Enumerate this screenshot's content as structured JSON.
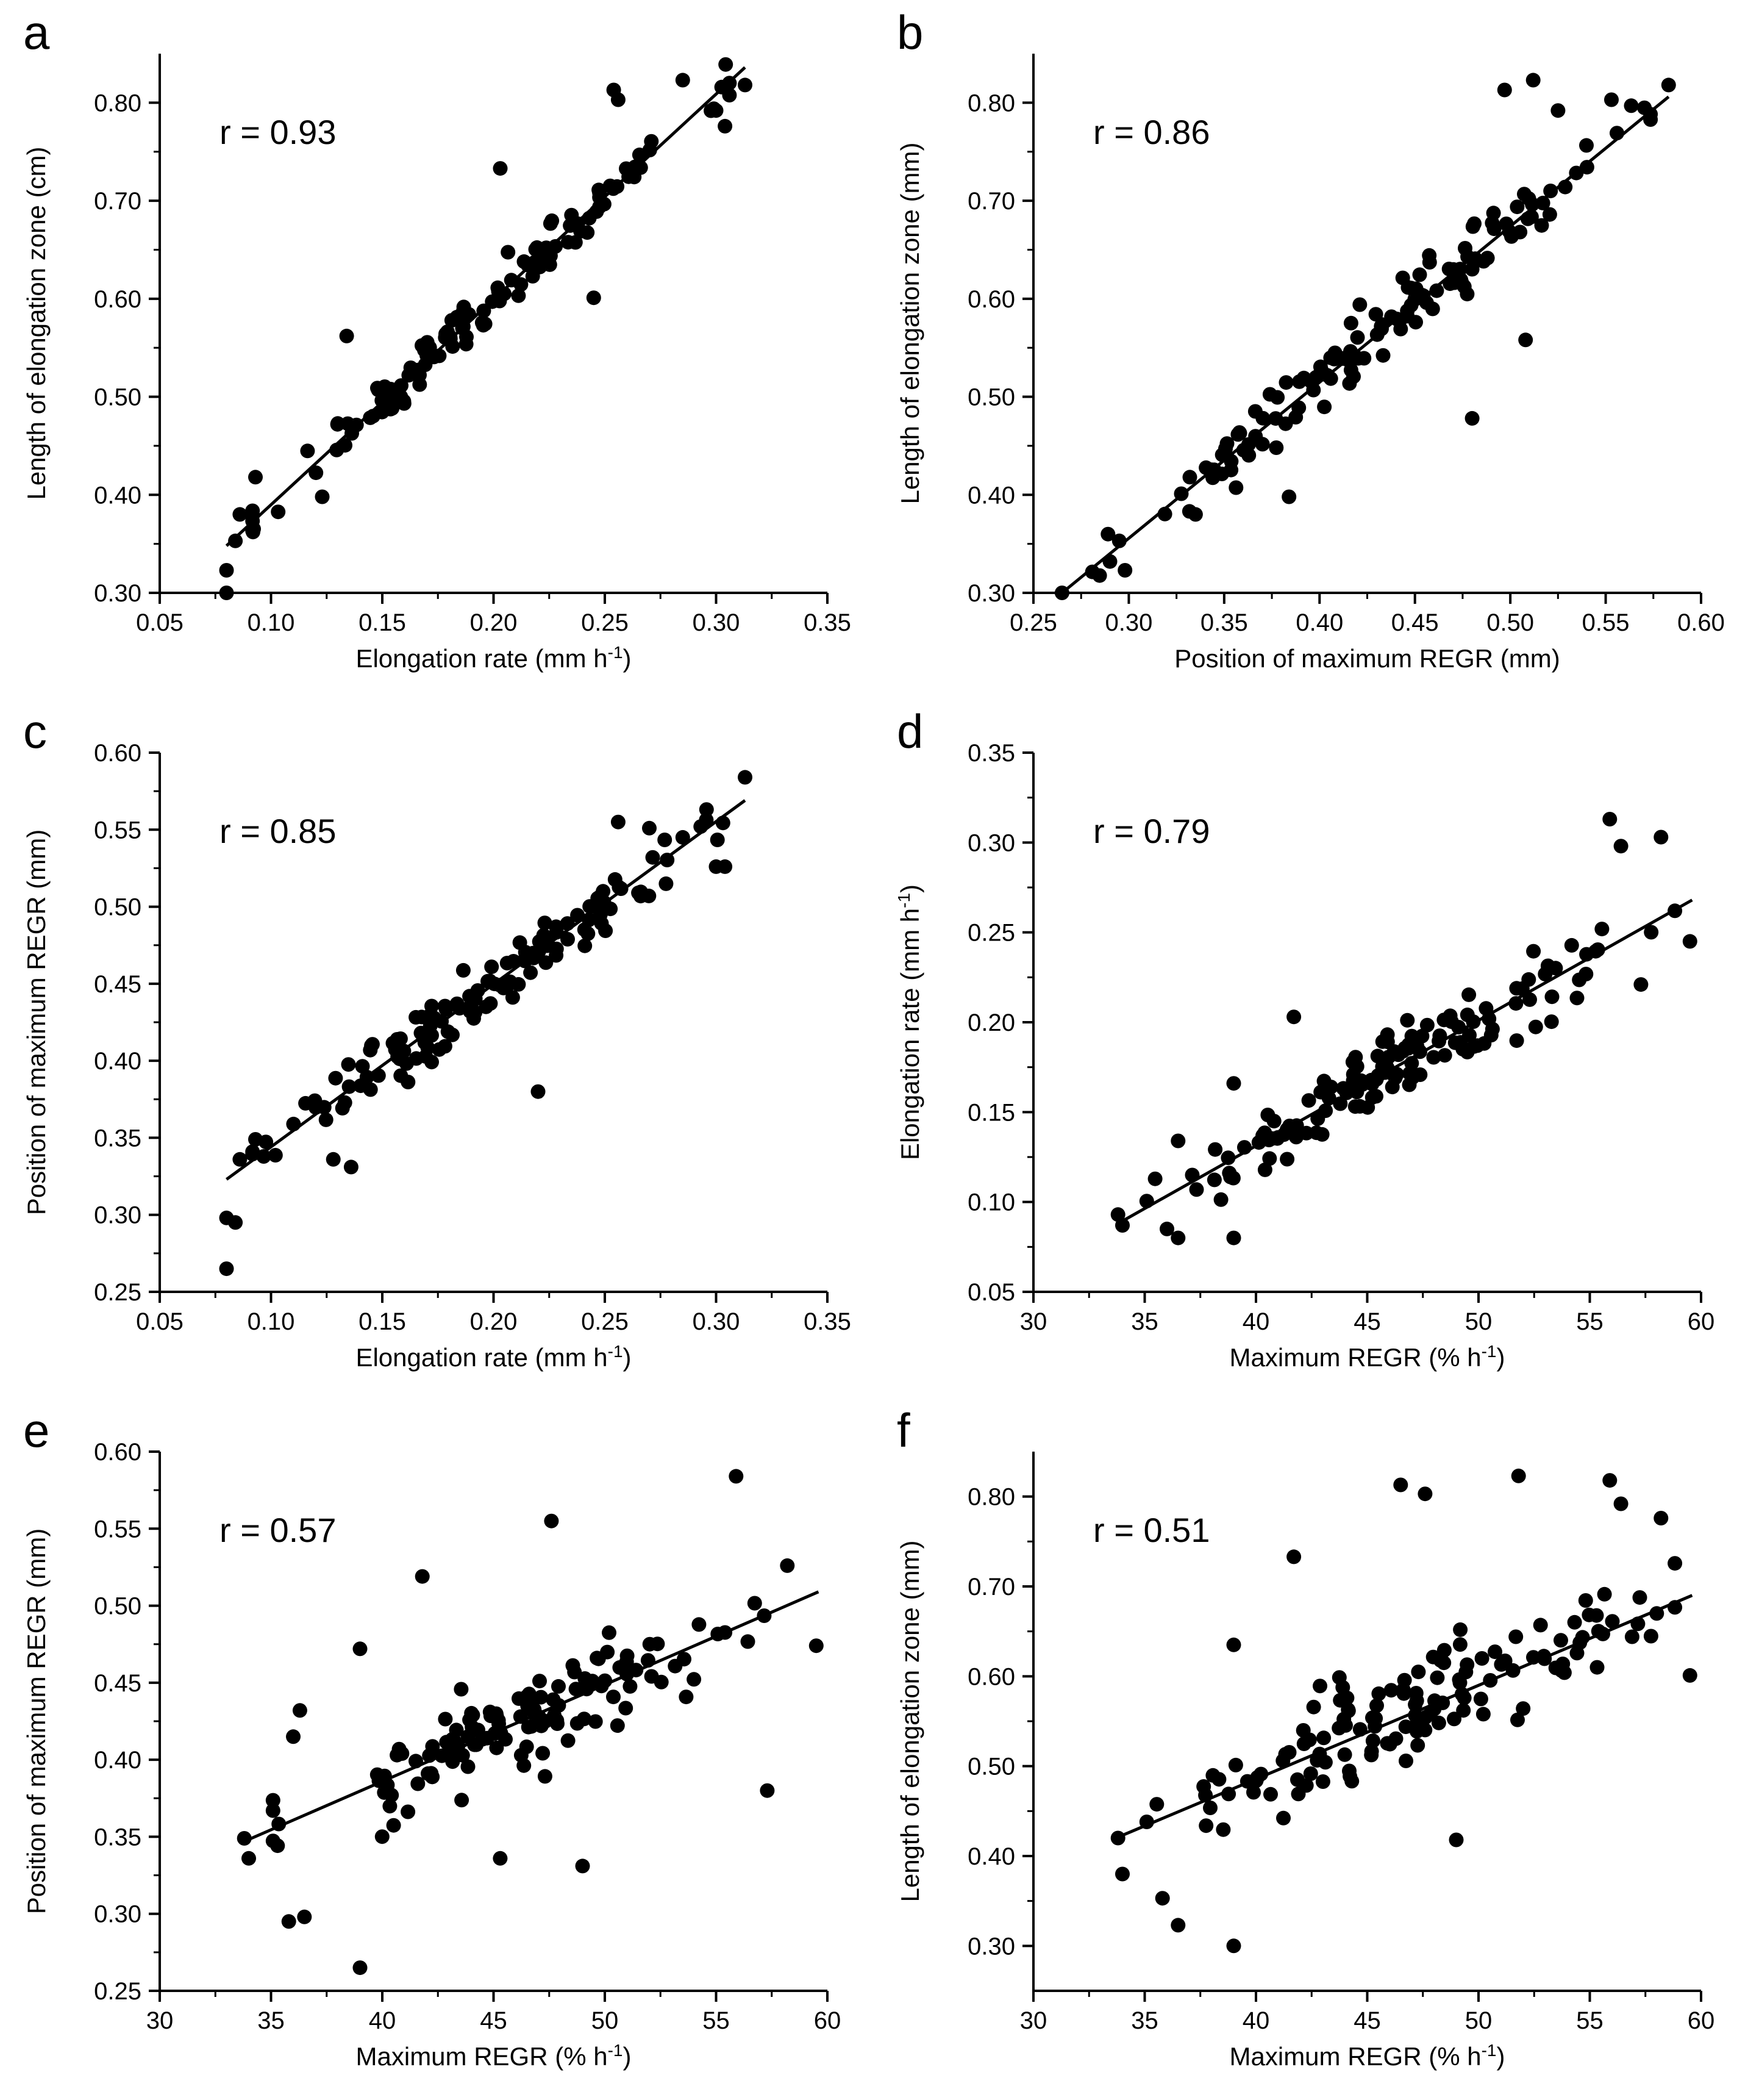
{
  "figure": {
    "panels_order": [
      "a",
      "b",
      "c",
      "d",
      "e",
      "f"
    ]
  },
  "chart_data": [
    {
      "panel": "a",
      "type": "scatter",
      "title": "",
      "r_text": "r = 0.93",
      "xlabel": "Elongation rate (mm h",
      "xlabel_sup": "-1",
      "xlabel_end": ")",
      "ylabel": "Length of elongation zone (cm)",
      "xlim": [
        0.05,
        0.35
      ],
      "ylim": [
        0.3,
        0.85
      ],
      "xticks": [
        "0.05",
        "0.10",
        "0.15",
        "0.20",
        "0.25",
        "0.30",
        "0.35"
      ],
      "yticks": [
        "0.30",
        "0.40",
        "0.50",
        "0.60",
        "0.70",
        "0.80"
      ],
      "regression": {
        "x": [
          0.08,
          0.313
        ],
        "y": [
          0.348,
          0.836
        ]
      },
      "seed": 11,
      "anchors": [
        [
          0.08,
          0.3
        ],
        [
          0.08,
          0.323
        ],
        [
          0.084,
          0.353
        ],
        [
          0.086,
          0.38
        ],
        [
          0.093,
          0.418
        ],
        [
          0.134,
          0.562
        ],
        [
          0.203,
          0.733
        ],
        [
          0.254,
          0.813
        ],
        [
          0.256,
          0.803
        ],
        [
          0.285,
          0.823
        ],
        [
          0.313,
          0.818
        ],
        [
          0.3,
          0.792
        ],
        [
          0.304,
          0.776
        ],
        [
          0.245,
          0.601
        ],
        [
          0.123,
          0.398
        ]
      ]
    },
    {
      "panel": "b",
      "type": "scatter",
      "title": "",
      "r_text": "r = 0.86",
      "xlabel": "Position of maximum REGR (mm)",
      "ylabel": "Length of elongation zone (mm)",
      "xlim": [
        0.25,
        0.6
      ],
      "ylim": [
        0.3,
        0.85
      ],
      "xticks": [
        "0.25",
        "0.30",
        "0.35",
        "0.40",
        "0.45",
        "0.50",
        "0.55",
        "0.60"
      ],
      "yticks": [
        "0.30",
        "0.40",
        "0.50",
        "0.60",
        "0.70",
        "0.80"
      ],
      "regression": {
        "x": [
          0.265,
          0.583
        ],
        "y": [
          0.3,
          0.806
        ]
      },
      "seed": 23,
      "anchors": [
        [
          0.265,
          0.3
        ],
        [
          0.295,
          0.353
        ],
        [
          0.298,
          0.323
        ],
        [
          0.335,
          0.38
        ],
        [
          0.332,
          0.418
        ],
        [
          0.384,
          0.398
        ],
        [
          0.48,
          0.478
        ],
        [
          0.497,
          0.813
        ],
        [
          0.512,
          0.823
        ],
        [
          0.583,
          0.818
        ],
        [
          0.553,
          0.803
        ],
        [
          0.508,
          0.558
        ],
        [
          0.525,
          0.792
        ]
      ]
    },
    {
      "panel": "c",
      "type": "scatter",
      "title": "",
      "r_text": "r = 0.85",
      "xlabel": "Elongation rate (mm h",
      "xlabel_sup": "-1",
      "xlabel_end": ")",
      "ylabel": "Position of maximum REGR (mm)",
      "xlim": [
        0.05,
        0.35
      ],
      "ylim": [
        0.25,
        0.6
      ],
      "xticks": [
        "0.05",
        "0.10",
        "0.15",
        "0.20",
        "0.25",
        "0.30",
        "0.35"
      ],
      "yticks": [
        "0.25",
        "0.30",
        "0.35",
        "0.40",
        "0.45",
        "0.50",
        "0.55",
        "0.60"
      ],
      "regression": {
        "x": [
          0.08,
          0.313
        ],
        "y": [
          0.323,
          0.569
        ]
      },
      "seed": 37,
      "anchors": [
        [
          0.08,
          0.265
        ],
        [
          0.08,
          0.298
        ],
        [
          0.084,
          0.295
        ],
        [
          0.086,
          0.336
        ],
        [
          0.093,
          0.349
        ],
        [
          0.136,
          0.331
        ],
        [
          0.313,
          0.584
        ],
        [
          0.3,
          0.526
        ],
        [
          0.304,
          0.526
        ],
        [
          0.285,
          0.545
        ],
        [
          0.27,
          0.551
        ],
        [
          0.256,
          0.555
        ],
        [
          0.22,
          0.38
        ],
        [
          0.128,
          0.336
        ]
      ]
    },
    {
      "panel": "d",
      "type": "scatter",
      "title": "",
      "r_text": "r = 0.79",
      "xlabel": "Maximum REGR (% h",
      "xlabel_sup": "-1",
      "xlabel_end": ")",
      "ylabel": "Elongation rate (mm h",
      "ylabel_sup": "-1",
      "ylabel_end": ")",
      "xlim": [
        30,
        60
      ],
      "ylim": [
        0.05,
        0.35
      ],
      "xticks": [
        "30",
        "35",
        "40",
        "45",
        "50",
        "55",
        "60"
      ],
      "yticks": [
        "0.05",
        "0.10",
        "0.15",
        "0.20",
        "0.25",
        "0.30",
        "0.35"
      ],
      "regression": {
        "x": [
          33.8,
          59.6
        ],
        "y": [
          0.088,
          0.268
        ]
      },
      "seed": 41,
      "anchors": [
        [
          33.8,
          0.093
        ],
        [
          34.0,
          0.087
        ],
        [
          36.0,
          0.085
        ],
        [
          36.5,
          0.08
        ],
        [
          39.0,
          0.08
        ],
        [
          36.5,
          0.134
        ],
        [
          55.9,
          0.313
        ],
        [
          58.2,
          0.303
        ],
        [
          56.4,
          0.298
        ],
        [
          59.5,
          0.245
        ],
        [
          57.3,
          0.221
        ],
        [
          39.0,
          0.166
        ],
        [
          41.7,
          0.203
        ]
      ]
    },
    {
      "panel": "e",
      "type": "scatter",
      "title": "",
      "r_text": "r = 0.57",
      "xlabel": "Maximum REGR (% h",
      "xlabel_sup": "-1",
      "xlabel_end": ")",
      "ylabel": "Position of maximum REGR (mm)",
      "xlim": [
        30,
        60
      ],
      "ylim": [
        0.25,
        0.6
      ],
      "xticks": [
        "30",
        "35",
        "40",
        "45",
        "50",
        "55",
        "60"
      ],
      "yticks": [
        "0.25",
        "0.30",
        "0.35",
        "0.40",
        "0.45",
        "0.50",
        "0.55",
        "0.60"
      ],
      "regression": {
        "x": [
          33.8,
          59.6
        ],
        "y": [
          0.347,
          0.509
        ]
      },
      "seed": 53,
      "anchors": [
        [
          33.8,
          0.349
        ],
        [
          34.0,
          0.336
        ],
        [
          35.8,
          0.295
        ],
        [
          36.5,
          0.298
        ],
        [
          39.0,
          0.265
        ],
        [
          36.0,
          0.415
        ],
        [
          36.3,
          0.432
        ],
        [
          39.0,
          0.472
        ],
        [
          41.8,
          0.519
        ],
        [
          47.6,
          0.555
        ],
        [
          55.9,
          0.584
        ],
        [
          58.2,
          0.526
        ],
        [
          59.5,
          0.474
        ],
        [
          57.3,
          0.38
        ],
        [
          49.0,
          0.331
        ],
        [
          45.3,
          0.336
        ]
      ]
    },
    {
      "panel": "f",
      "type": "scatter",
      "title": "",
      "r_text": "r = 0.51",
      "xlabel": "Maximum REGR (% h",
      "xlabel_sup": "-1",
      "xlabel_end": ")",
      "ylabel": "Length of elongation zone (mm)",
      "xlim": [
        30,
        60
      ],
      "ylim": [
        0.25,
        0.85
      ],
      "xticks": [
        "30",
        "35",
        "40",
        "45",
        "50",
        "55",
        "60"
      ],
      "yticks": [
        "0.30",
        "0.40",
        "0.50",
        "0.60",
        "0.70",
        "0.80"
      ],
      "regression": {
        "x": [
          33.8,
          59.6
        ],
        "y": [
          0.421,
          0.69
        ]
      },
      "seed": 67,
      "anchors": [
        [
          33.8,
          0.42
        ],
        [
          34.0,
          0.38
        ],
        [
          35.8,
          0.353
        ],
        [
          36.5,
          0.323
        ],
        [
          39.0,
          0.3
        ],
        [
          39.0,
          0.635
        ],
        [
          41.7,
          0.733
        ],
        [
          46.5,
          0.813
        ],
        [
          47.6,
          0.803
        ],
        [
          51.8,
          0.823
        ],
        [
          55.9,
          0.818
        ],
        [
          56.4,
          0.792
        ],
        [
          58.2,
          0.776
        ],
        [
          59.5,
          0.601
        ],
        [
          49.0,
          0.418
        ]
      ]
    }
  ]
}
